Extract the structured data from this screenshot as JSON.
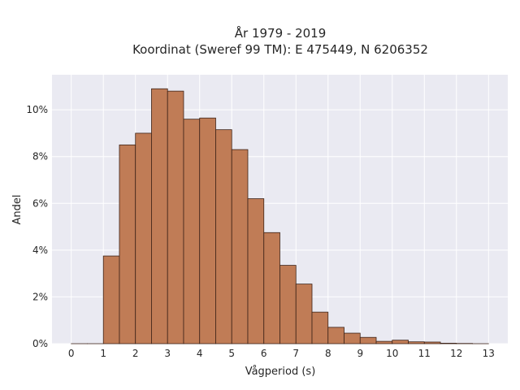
{
  "chart_data": {
    "type": "bar",
    "title_line1": "År 1979 - 2019",
    "title_line2": "Koordinat (Sweref 99 TM): E 475449, N 6206352",
    "xlabel": "Vågperiod (s)",
    "ylabel": "Andel",
    "x_ticks": [
      "0",
      "1",
      "2",
      "3",
      "4",
      "5",
      "6",
      "7",
      "8",
      "9",
      "10",
      "11",
      "12",
      "13"
    ],
    "y_ticks": [
      "0%",
      "2%",
      "4%",
      "6%",
      "8%",
      "10%"
    ],
    "bin_width": 0.5,
    "bins": [
      {
        "x0": 0.0,
        "value": 0.0
      },
      {
        "x0": 0.5,
        "value": 0.0
      },
      {
        "x0": 1.0,
        "value": 3.75
      },
      {
        "x0": 1.5,
        "value": 8.5
      },
      {
        "x0": 2.0,
        "value": 9.0
      },
      {
        "x0": 2.5,
        "value": 10.9
      },
      {
        "x0": 3.0,
        "value": 10.8
      },
      {
        "x0": 3.5,
        "value": 9.6
      },
      {
        "x0": 4.0,
        "value": 9.65
      },
      {
        "x0": 4.5,
        "value": 9.15
      },
      {
        "x0": 5.0,
        "value": 8.3
      },
      {
        "x0": 5.5,
        "value": 6.2
      },
      {
        "x0": 6.0,
        "value": 4.75
      },
      {
        "x0": 6.5,
        "value": 3.35
      },
      {
        "x0": 7.0,
        "value": 2.55
      },
      {
        "x0": 7.5,
        "value": 1.35
      },
      {
        "x0": 8.0,
        "value": 0.7
      },
      {
        "x0": 8.5,
        "value": 0.45
      },
      {
        "x0": 9.0,
        "value": 0.27
      },
      {
        "x0": 9.5,
        "value": 0.1
      },
      {
        "x0": 10.0,
        "value": 0.15
      },
      {
        "x0": 10.5,
        "value": 0.08
      },
      {
        "x0": 11.0,
        "value": 0.07
      },
      {
        "x0": 11.5,
        "value": 0.02
      },
      {
        "x0": 12.0,
        "value": 0.01
      },
      {
        "x0": 12.5,
        "value": 0.0
      }
    ],
    "xlim": [
      -0.6,
      13.6
    ],
    "ylim": [
      0,
      11.5
    ],
    "grid": true,
    "colors": {
      "background": "#eaeaf2",
      "grid": "#ffffff",
      "bar_fill": "#c07c56",
      "bar_edge": "#3d2318",
      "text": "#262626"
    }
  }
}
